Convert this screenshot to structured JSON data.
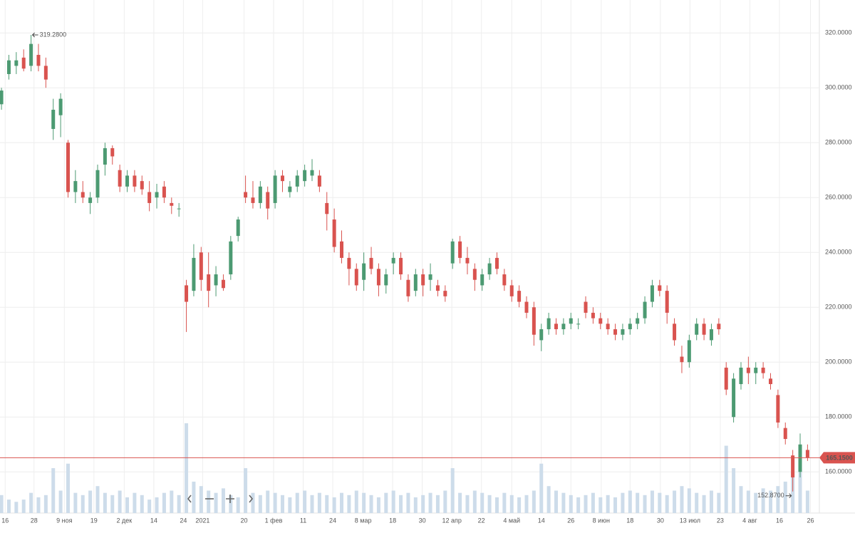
{
  "chart_data": {
    "type": "candlestick",
    "open": [
      294,
      305,
      308,
      311,
      308,
      312,
      308,
      285,
      290,
      280,
      262,
      262,
      258,
      260,
      272,
      278,
      270,
      264,
      268,
      266,
      262,
      260,
      264,
      258,
      256,
      228,
      226,
      240,
      232,
      228,
      230,
      232,
      246,
      262,
      260,
      258,
      262,
      258,
      268,
      262,
      264,
      266,
      268,
      268,
      258,
      252,
      244,
      238,
      234,
      230,
      238,
      234,
      228,
      236,
      238,
      230,
      226,
      232,
      230,
      228,
      226,
      236,
      244,
      238,
      234,
      228,
      232,
      238,
      232,
      228,
      226,
      222,
      220,
      208,
      212,
      214,
      212,
      214,
      214,
      222,
      218,
      216,
      214,
      212,
      210,
      212,
      214,
      216,
      222,
      228,
      226,
      214,
      202,
      200,
      210,
      214,
      208,
      214,
      198,
      180,
      192,
      198,
      196,
      198,
      194,
      188,
      176,
      166,
      160,
      168
    ],
    "high": [
      300,
      312,
      313,
      314,
      319.28,
      316,
      311,
      296,
      298,
      281,
      270,
      266,
      262,
      272,
      280,
      279,
      272,
      270,
      270,
      268,
      266,
      265,
      266,
      260,
      258,
      230,
      243,
      242,
      240,
      235,
      232,
      246,
      253,
      268,
      266,
      266,
      264,
      270,
      270,
      266,
      270,
      272,
      274,
      270,
      262,
      256,
      248,
      240,
      236,
      240,
      242,
      236,
      234,
      240,
      240,
      232,
      234,
      234,
      236,
      230,
      228,
      245,
      246,
      242,
      236,
      234,
      238,
      240,
      234,
      230,
      228,
      224,
      222,
      214,
      218,
      216,
      216,
      218,
      216,
      224,
      220,
      218,
      216,
      214,
      214,
      216,
      218,
      224,
      230,
      230,
      228,
      216,
      206,
      210,
      216,
      216,
      214,
      216,
      200,
      196,
      200,
      202,
      200,
      200,
      196,
      190,
      178,
      168,
      174,
      170
    ],
    "low": [
      292,
      303,
      305,
      306,
      306,
      306,
      300,
      281,
      282,
      260,
      258,
      258,
      254,
      258,
      268,
      272,
      262,
      262,
      262,
      261,
      255,
      256,
      258,
      254,
      253,
      211,
      224,
      226,
      220,
      224,
      226,
      230,
      244,
      258,
      256,
      256,
      252,
      256,
      262,
      260,
      262,
      264,
      266,
      262,
      248,
      240,
      236,
      228,
      226,
      226,
      232,
      224,
      225,
      232,
      230,
      222,
      224,
      224,
      226,
      224,
      222,
      234,
      236,
      232,
      226,
      226,
      230,
      232,
      226,
      222,
      220,
      216,
      206,
      204,
      210,
      210,
      210,
      212,
      212,
      216,
      214,
      212,
      210,
      208,
      208,
      210,
      212,
      214,
      220,
      224,
      214,
      206,
      196,
      198,
      208,
      208,
      206,
      210,
      188,
      178,
      190,
      192,
      192,
      194,
      190,
      176,
      170,
      152.87,
      158,
      164
    ],
    "close": [
      299,
      310,
      310,
      307,
      316,
      308,
      303,
      292,
      296,
      262,
      266,
      260,
      260,
      270,
      278,
      275,
      264,
      268,
      264,
      263,
      258,
      262,
      260,
      257,
      256,
      222,
      238,
      230,
      226,
      232,
      227,
      244,
      252,
      260,
      258,
      264,
      256,
      268,
      266,
      264,
      268,
      270,
      270,
      264,
      254,
      242,
      238,
      234,
      228,
      236,
      234,
      228,
      232,
      238,
      232,
      224,
      232,
      228,
      232,
      226,
      224,
      244,
      238,
      236,
      230,
      232,
      236,
      234,
      228,
      224,
      222,
      218,
      210,
      212,
      216,
      212,
      214,
      216,
      214,
      218,
      216,
      214,
      212,
      210,
      212,
      214,
      216,
      222,
      228,
      226,
      218,
      208,
      200,
      208,
      214,
      210,
      212,
      212,
      190,
      194,
      198,
      196,
      198,
      196,
      192,
      178,
      172,
      158,
      170,
      165.15
    ],
    "volume": [
      8,
      6,
      5,
      6,
      9,
      7,
      8,
      20,
      10,
      22,
      9,
      8,
      10,
      12,
      9,
      8,
      10,
      7,
      9,
      8,
      6,
      7,
      9,
      10,
      8,
      40,
      14,
      12,
      10,
      9,
      11,
      8,
      7,
      20,
      9,
      8,
      10,
      9,
      8,
      7,
      9,
      10,
      8,
      9,
      8,
      7,
      9,
      8,
      10,
      9,
      8,
      7,
      9,
      10,
      8,
      9,
      7,
      8,
      9,
      8,
      10,
      20,
      9,
      8,
      10,
      9,
      8,
      7,
      9,
      8,
      7,
      8,
      10,
      22,
      12,
      10,
      9,
      8,
      7,
      8,
      9,
      7,
      8,
      7,
      9,
      10,
      9,
      8,
      10,
      9,
      8,
      10,
      12,
      11,
      9,
      8,
      10,
      9,
      30,
      20,
      12,
      10,
      9,
      11,
      10,
      12,
      14,
      18,
      20,
      10
    ],
    "xlim": [
      -0.2,
      110.6
    ],
    "ylim": [
      145,
      332
    ],
    "yticks": [
      {
        "value": 160,
        "label": "160.0000"
      },
      {
        "value": 180,
        "label": "180.0000"
      },
      {
        "value": 200,
        "label": "200.0000"
      },
      {
        "value": 220,
        "label": "220.0000"
      },
      {
        "value": 240,
        "label": "240.0000"
      },
      {
        "value": 260,
        "label": "260.0000"
      },
      {
        "value": 280,
        "label": "280.0000"
      },
      {
        "value": 300,
        "label": "300.0000"
      },
      {
        "value": 320,
        "label": "320.0000"
      }
    ],
    "xticks": [
      {
        "value": 0.5,
        "label": "16"
      },
      {
        "value": 4.4,
        "label": "28"
      },
      {
        "value": 8.5,
        "label": "9 ноя"
      },
      {
        "value": 12.5,
        "label": "19"
      },
      {
        "value": 16.6,
        "label": "2 дек"
      },
      {
        "value": 20.6,
        "label": "14"
      },
      {
        "value": 24.6,
        "label": "24"
      },
      {
        "value": 27.2,
        "label": "2021"
      },
      {
        "value": 32.8,
        "label": "20"
      },
      {
        "value": 36.8,
        "label": "1 фев"
      },
      {
        "value": 40.8,
        "label": "11"
      },
      {
        "value": 44.8,
        "label": "24"
      },
      {
        "value": 48.9,
        "label": "8 мар"
      },
      {
        "value": 52.9,
        "label": "18"
      },
      {
        "value": 56.9,
        "label": "30"
      },
      {
        "value": 60.9,
        "label": "12 апр"
      },
      {
        "value": 64.9,
        "label": "22"
      },
      {
        "value": 69,
        "label": "4 май"
      },
      {
        "value": 73,
        "label": "14"
      },
      {
        "value": 77,
        "label": "26"
      },
      {
        "value": 81.1,
        "label": "8 июн"
      },
      {
        "value": 85,
        "label": "18"
      },
      {
        "value": 89.1,
        "label": "30"
      },
      {
        "value": 93.1,
        "label": "13 июл"
      },
      {
        "value": 97.2,
        "label": "23"
      },
      {
        "value": 101.2,
        "label": "4 авг"
      },
      {
        "value": 105.2,
        "label": "16"
      },
      {
        "value": 109.4,
        "label": "26"
      }
    ],
    "max_label": {
      "value": 319.28,
      "label": "319.2800"
    },
    "min_label": {
      "value": 152.87,
      "label": "152.8700"
    },
    "last_label": {
      "value": 165.15,
      "label": "165.1500"
    },
    "up_color": "#4c9a72",
    "down_color": "#d9534f",
    "volume_color": "#cddcea",
    "grid": true
  }
}
